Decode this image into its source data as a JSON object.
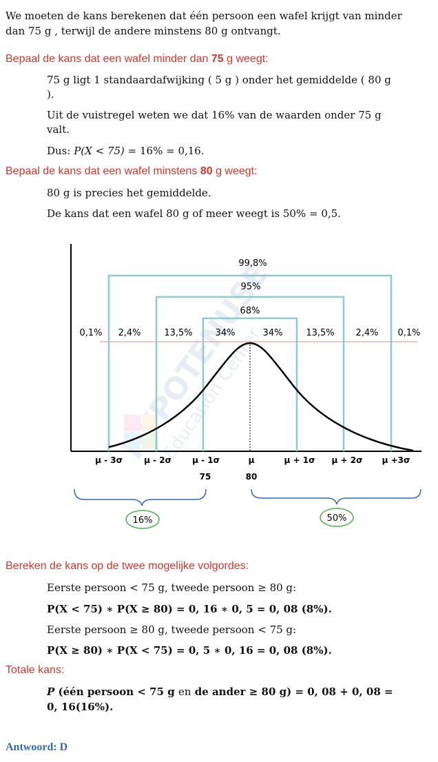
{
  "intro": "We moeten de kans berekenen dat één persoon een wafel krijgt van minder dan 75 g , terwijl de andere minstens 80 g ontvangt.",
  "section1": {
    "heading_pre": "Bepaal de kans dat een wafel minder dan ",
    "heading_num": "75",
    "heading_post": " g weegt:",
    "line1": "75 g ligt 1 standaardafwijking ( 5 g ) onder het gemiddelde ( 80 g ).",
    "line2": "Uit de vuistregel weten we dat 16% van de waarden onder 75 g valt.",
    "line3_pre": "Dus: ",
    "line3_math": "P(X < 75)",
    "line3_post": " = 16% = 0,16."
  },
  "section2": {
    "heading_pre": "Bepaal de kans dat een wafel minstens ",
    "heading_num": "80",
    "heading_post": " g weegt:",
    "line1": "80 g is precies het gemiddelde.",
    "line2": "De kans dat een wafel 80 g of meer weegt is 50% = 0,5."
  },
  "diagram": {
    "watermark_main": "HYPOTENUSE",
    "watermark_sub": "Education Center",
    "bracket_labels": [
      "99,8%",
      "95%",
      "68%"
    ],
    "region_labels": [
      "0,1%",
      "2,4%",
      "13,5%",
      "34%",
      "34%",
      "13,5%",
      "2,4%",
      "0,1%"
    ],
    "axis_labels": [
      "μ - 3σ",
      "μ - 2σ",
      "μ - 1σ",
      "μ",
      "μ + 1σ",
      "μ + 2σ",
      "μ +3σ"
    ],
    "value_labels": [
      "75",
      "80"
    ],
    "brace_labels": [
      "16%",
      "50%"
    ],
    "colors": {
      "bracket": "#8ec9cc",
      "redline": "#e7a49d",
      "oval": "#4caf50",
      "brace": "#2f6bb0"
    }
  },
  "section3": {
    "heading": "Bereken de kans op de twee mogelijke volgordes:",
    "line1": "Eerste persoon < 75 g, tweede persoon ≥ 80 g:",
    "line2": "P(X < 75) ∗ P(X ≥ 80) = 0, 16 ∗ 0, 5 = 0, 08 (8%).",
    "line3": "Eerste persoon ≥ 80 g, tweede persoon < 75 g:",
    "line4": "P(X ≥ 80) ∗ P(X < 75) = 0, 5 ∗ 0, 16 = 0, 08 (8%)."
  },
  "section4": {
    "heading": "Totale kans:",
    "line1_p": "P",
    "line1_a": " (één persoon < 75 g ",
    "line1_en": "en",
    "line1_b": " de ander ≥ 80 g) = 0, 08 + 0, 08 =",
    "line2": "0, 16(16%)."
  },
  "answer": "Antwoord: D"
}
